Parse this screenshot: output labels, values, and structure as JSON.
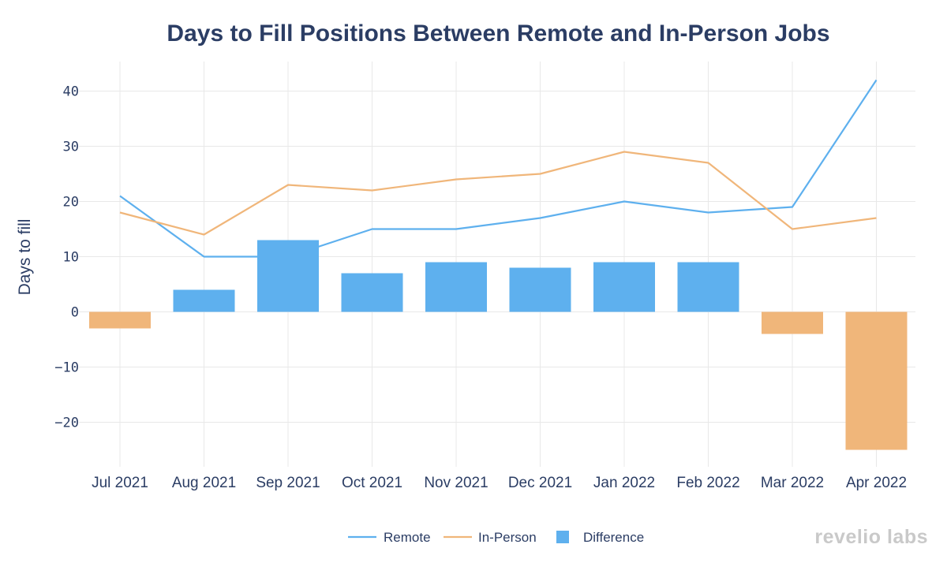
{
  "chart_data": {
    "type": "bar",
    "title": "Days to Fill Positions Between Remote and In-Person Jobs",
    "xlabel": "",
    "ylabel": "Days to fill",
    "ylim": [
      -27.5,
      46
    ],
    "yticks": [
      40,
      30,
      20,
      10,
      0,
      -10,
      -20
    ],
    "categories": [
      "Jul 2021",
      "Aug 2021",
      "Sep 2021",
      "Oct 2021",
      "Nov 2021",
      "Dec 2021",
      "Jan 2022",
      "Feb 2022",
      "Mar 2022",
      "Apr 2022"
    ],
    "series": [
      {
        "name": "Remote",
        "type": "line",
        "color": "#5eb0ee",
        "values": [
          21,
          10,
          10,
          15,
          15,
          17,
          20,
          18,
          19,
          42
        ]
      },
      {
        "name": "In-Person",
        "type": "line",
        "color": "#f0b67a",
        "values": [
          18,
          14,
          23,
          22,
          24,
          25,
          29,
          27,
          15,
          17
        ]
      },
      {
        "name": "Difference",
        "type": "bar",
        "color_positive": "#5eb0ee",
        "color_negative": "#f0b67a",
        "values": [
          -3,
          4,
          13,
          7,
          9,
          8,
          9,
          9,
          -4,
          -25
        ]
      }
    ],
    "grid": true,
    "legend": "bottom-center"
  },
  "watermark": "revelio labs"
}
